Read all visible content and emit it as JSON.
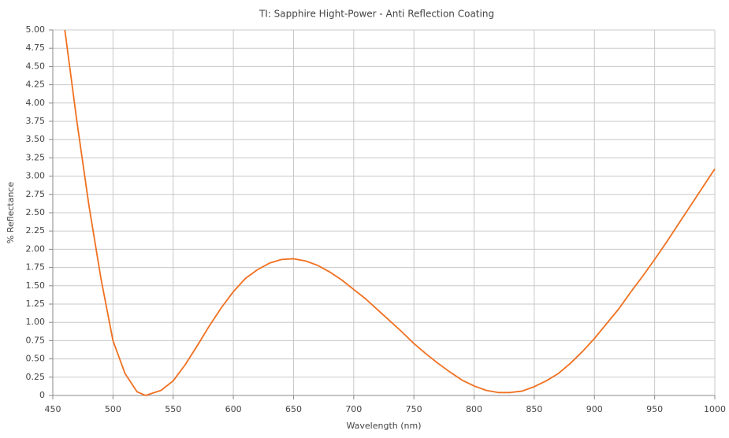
{
  "chart_data": {
    "type": "line",
    "title": "TI: Sapphire Hight-Power - Anti Reflection Coating",
    "x_label": "Wavelength (nm)",
    "y_label": "% Reflectance",
    "x": [
      460,
      470,
      480,
      490,
      500,
      510,
      520,
      527,
      540,
      550,
      560,
      570,
      580,
      590,
      600,
      610,
      620,
      630,
      640,
      650,
      660,
      670,
      680,
      690,
      700,
      710,
      720,
      730,
      740,
      750,
      760,
      770,
      780,
      790,
      800,
      810,
      820,
      830,
      840,
      850,
      860,
      870,
      880,
      890,
      900,
      910,
      920,
      930,
      940,
      950,
      960,
      970,
      980,
      990,
      1000
    ],
    "values": [
      5.0,
      3.75,
      2.6,
      1.6,
      0.75,
      0.3,
      0.05,
      0.0,
      0.07,
      0.2,
      0.42,
      0.68,
      0.95,
      1.2,
      1.42,
      1.6,
      1.72,
      1.81,
      1.86,
      1.87,
      1.84,
      1.78,
      1.69,
      1.58,
      1.45,
      1.32,
      1.17,
      1.02,
      0.87,
      0.71,
      0.57,
      0.44,
      0.32,
      0.21,
      0.13,
      0.07,
      0.04,
      0.04,
      0.06,
      0.12,
      0.2,
      0.3,
      0.44,
      0.6,
      0.78,
      0.98,
      1.18,
      1.41,
      1.63,
      1.86,
      2.1,
      2.35,
      2.6,
      2.85,
      3.1
    ],
    "color": "#f07020",
    "xlim": [
      450,
      1000
    ],
    "xticks": [
      450,
      500,
      550,
      600,
      650,
      700,
      750,
      800,
      850,
      900,
      950,
      1000
    ],
    "ylim": [
      0,
      5
    ],
    "yticks": [
      {
        "value": 0,
        "label": "0"
      },
      {
        "value": 0.25,
        "label": "0.25"
      },
      {
        "value": 0.5,
        "label": "0.50"
      },
      {
        "value": 0.75,
        "label": "0.75"
      },
      {
        "value": 1,
        "label": "1.00"
      },
      {
        "value": 1.25,
        "label": "1.25"
      },
      {
        "value": 1.5,
        "label": "1.50"
      },
      {
        "value": 1.75,
        "label": "1.75"
      },
      {
        "value": 2,
        "label": "2.00"
      },
      {
        "value": 2.25,
        "label": "2.25"
      },
      {
        "value": 2.5,
        "label": "2.50"
      },
      {
        "value": 2.75,
        "label": "2.75"
      },
      {
        "value": 3,
        "label": "3.00"
      },
      {
        "value": 3.25,
        "label": "3.25"
      },
      {
        "value": 3.5,
        "label": "3.50"
      },
      {
        "value": 3.75,
        "label": "3.75"
      },
      {
        "value": 4,
        "label": "4.00"
      },
      {
        "value": 4.25,
        "label": "4.25"
      },
      {
        "value": 4.5,
        "label": "4.50"
      },
      {
        "value": 4.75,
        "label": "4.75"
      },
      {
        "value": 5,
        "label": "5.00"
      }
    ],
    "grid": true
  }
}
